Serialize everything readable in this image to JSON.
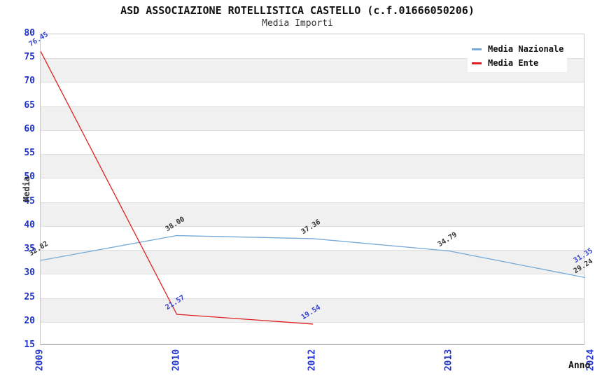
{
  "title": "ASD ASSOCIAZIONE ROTELLISTICA CASTELLO (c.f.01666050206)",
  "subtitle": "Media Importi",
  "axes": {
    "y_label": "Media",
    "x_label": "Anno"
  },
  "legend": {
    "items": [
      {
        "label": "Media Nazionale",
        "color": "#74a9d8"
      },
      {
        "label": "Media Ente",
        "color": "#e02020"
      }
    ]
  },
  "colors": {
    "axis_text": "#2233cc",
    "band": "#f0f0f0",
    "gridline": "#e0e0e0",
    "plot_border": "#c8c8c8",
    "axis_line": "#999999",
    "title": "#111111",
    "subtitle": "#333333"
  },
  "chart_data": {
    "type": "line",
    "title": "ASD ASSOCIAZIONE ROTELLISTICA CASTELLO (c.f.01666050206)",
    "subtitle": "Media Importi",
    "xlabel": "Anno",
    "ylabel": "Media",
    "categories": [
      "2009",
      "2010",
      "2012",
      "2013",
      "2024"
    ],
    "series": [
      {
        "name": "Media Nazionale",
        "color": "#74a9d8",
        "label_color": "#333333",
        "values": [
          32.82,
          38.0,
          37.36,
          34.79,
          29.24
        ]
      },
      {
        "name": "Media Ente",
        "color": "#e02020",
        "label_color": "#3340c8",
        "values": [
          76.45,
          21.57,
          19.54,
          null,
          31.35
        ]
      }
    ],
    "ylim": [
      15,
      80
    ],
    "ytick_step": 5,
    "grid": "horizontal-bands-alternating",
    "legend_position": "top-right",
    "data_labels": "all points, 2 decimals, rotated"
  }
}
